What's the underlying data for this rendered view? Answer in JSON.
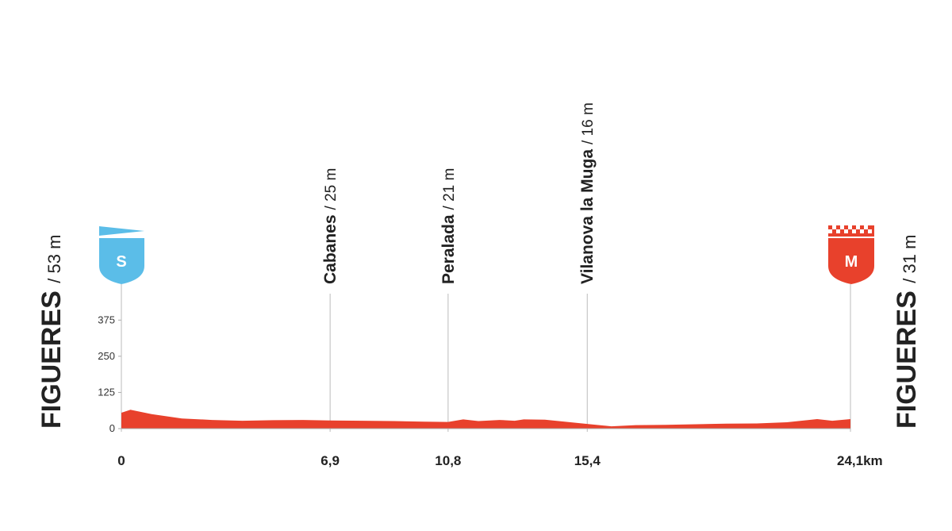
{
  "chart_data": {
    "type": "area",
    "color": "#e8412c",
    "x": [
      0,
      0.3,
      1,
      2,
      3,
      4,
      5,
      6,
      6.9,
      8,
      9,
      10,
      10.8,
      11.3,
      11.8,
      12.5,
      13,
      13.3,
      14,
      15.4,
      16.2,
      17,
      18,
      19,
      20,
      21,
      22,
      23,
      23.5,
      24.1
    ],
    "values": [
      55,
      65,
      50,
      35,
      30,
      27,
      29,
      30,
      28,
      27,
      26,
      24,
      23,
      32,
      26,
      30,
      27,
      32,
      31,
      16,
      8,
      12,
      13,
      15,
      17,
      18,
      22,
      33,
      27,
      33
    ],
    "xlim": [
      0,
      24.1
    ],
    "xticks": [
      0,
      {
        "value": 6.9,
        "label": "6,9"
      },
      {
        "value": 10.8,
        "label": "10,8"
      },
      {
        "value": 15.4,
        "label": "15,4"
      },
      {
        "value": 24.1,
        "label": "24,1km"
      }
    ],
    "ylim": [
      0,
      480
    ],
    "yticks": [
      0,
      125,
      250,
      375
    ],
    "places": [
      {
        "name": "Cabanes",
        "elevation": "/ 25 m"
      },
      {
        "name": "Peralada",
        "elevation": "/ 21 m"
      },
      {
        "name": "Vilanova la Muga",
        "elevation": "/ 16 m"
      }
    ],
    "start": {
      "name": "FIGUERES",
      "elevation": "/ 53 m",
      "icon": "S"
    },
    "finish": {
      "name": "FIGUERES",
      "elevation": "/ 31 m",
      "icon": "M"
    }
  }
}
